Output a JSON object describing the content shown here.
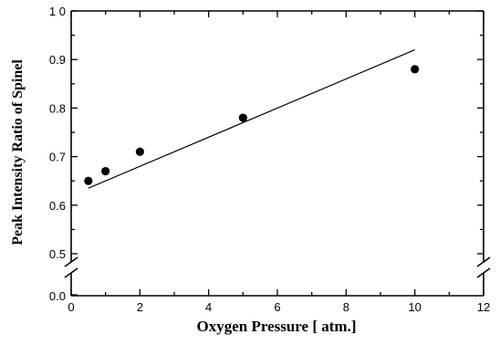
{
  "chart_data": {
    "type": "scatter",
    "xlabel": "Oxygen Pressure [ atm.]",
    "ylabel": "Peak Intensity Ratio of Spinel",
    "xlim": [
      0,
      12
    ],
    "ylim": [
      0.5,
      1.0
    ],
    "y_axis_break": true,
    "y_below_break_value": 0.0,
    "x_ticks": [
      "0",
      "2",
      "4",
      "6",
      "8",
      "10",
      "12"
    ],
    "y_ticks": [
      "0.5",
      "0.6",
      "0.7",
      "0.8",
      "0.9",
      "1 0"
    ],
    "y_break_tick": "0.0",
    "grid": false,
    "series": [
      {
        "x": [
          0.5,
          1,
          2,
          5,
          10
        ],
        "y": [
          0.65,
          0.67,
          0.71,
          0.78,
          0.88
        ]
      }
    ],
    "fit_line": {
      "x": [
        0.5,
        10
      ],
      "y": [
        0.635,
        0.92
      ]
    }
  }
}
